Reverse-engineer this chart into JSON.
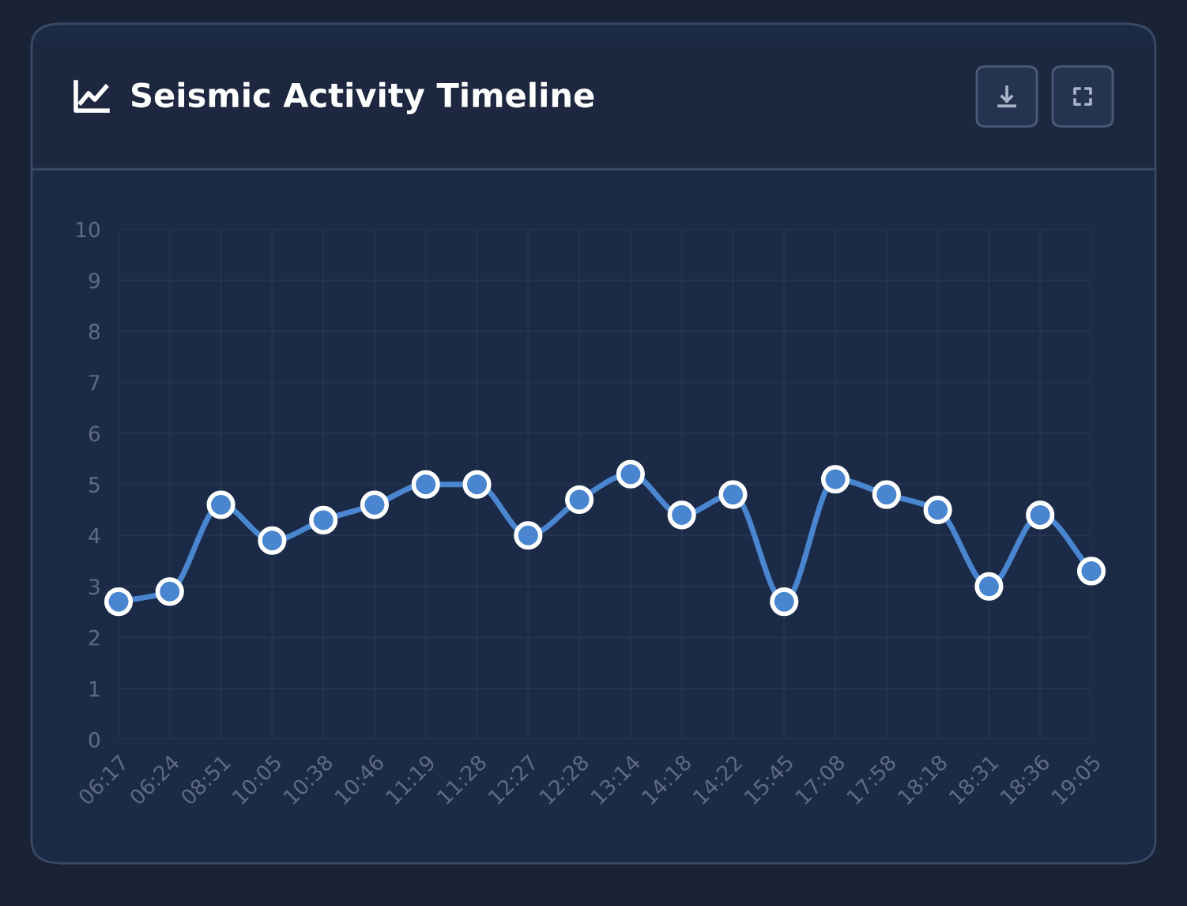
{
  "chart_data": {
    "type": "line",
    "title": "Seismic Activity Timeline",
    "categories": [
      "06:17",
      "06:24",
      "08:51",
      "10:05",
      "10:38",
      "10:46",
      "11:19",
      "11:28",
      "12:27",
      "12:28",
      "13:14",
      "14:18",
      "14:22",
      "15:45",
      "17:08",
      "17:58",
      "18:18",
      "18:31",
      "18:36",
      "19:05"
    ],
    "series": [
      {
        "color": "#4a86d0",
        "values": [
          2.7,
          2.9,
          4.6,
          3.9,
          4.3,
          4.6,
          5.0,
          5.0,
          4.0,
          4.7,
          5.2,
          4.4,
          4.8,
          2.7,
          5.1,
          4.8,
          4.5,
          3.0,
          4.4,
          3.3
        ]
      }
    ],
    "ylim": [
      0,
      10
    ],
    "yticks": [
      0,
      1,
      2,
      3,
      4,
      5,
      6,
      7,
      8,
      9,
      10
    ],
    "grid": true,
    "marker": "circle",
    "line_style": "solid",
    "legend": false
  }
}
